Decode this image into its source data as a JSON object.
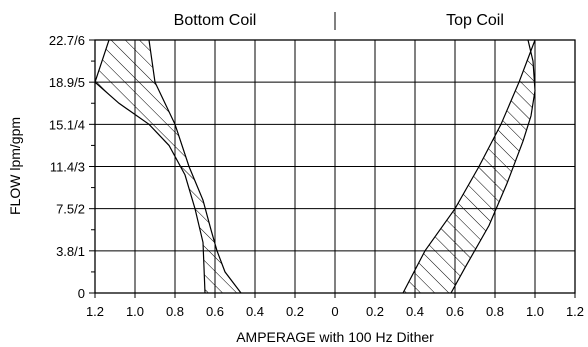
{
  "chart_data": {
    "type": "area",
    "panel_titles": [
      "Bottom Coil",
      "Top Coil"
    ],
    "xlabel": "AMPERAGE with 100 Hz Dither",
    "ylabel": "FLOW lpm/gpm",
    "x_tick_labels": [
      "1.2",
      "1.0",
      "0.8",
      "0.6",
      "0.4",
      "0.2",
      "0",
      "0.2",
      "0.4",
      "0.6",
      "0.8",
      "1.0",
      "1.2"
    ],
    "y_tick_labels": [
      "0",
      "3.8/1",
      "7.5/2",
      "11.4/3",
      "15.1/4",
      "18.9/5",
      "22.7/6"
    ],
    "y_tick_values_gpm": [
      0,
      1,
      2,
      3,
      4,
      5,
      6
    ],
    "xlim": [
      -1.2,
      1.2
    ],
    "ylim_gpm": [
      0,
      6
    ],
    "grid": true,
    "fill_pattern": "diagonal-hatch",
    "series": [
      {
        "panel": "Bottom Coil",
        "edge_a": {
          "x_amps": [
            1.13,
            1.2,
            1.08,
            0.93,
            0.83,
            0.75,
            0.7,
            0.66,
            0.65
          ],
          "y_gpm": [
            6.0,
            5.0,
            4.5,
            4.0,
            3.5,
            2.8,
            2.0,
            1.2,
            0.0
          ]
        },
        "edge_b": {
          "x_amps": [
            0.93,
            0.9,
            0.85,
            0.8,
            0.73,
            0.66,
            0.62,
            0.59,
            0.55,
            0.47
          ],
          "y_gpm": [
            6.0,
            5.0,
            4.5,
            4.0,
            3.0,
            2.2,
            1.5,
            1.0,
            0.5,
            0.0
          ]
        }
      },
      {
        "panel": "Top Coil",
        "edge_a": {
          "x_amps": [
            0.34,
            0.45,
            0.6,
            0.72,
            0.83,
            0.92,
            0.96,
            1.0,
            1.05,
            1.1
          ],
          "y_gpm": [
            0.0,
            1.0,
            2.0,
            3.0,
            4.0,
            5.0,
            5.5,
            6.0,
            6.3,
            6.6
          ]
        },
        "edge_b": {
          "x_amps": [
            0.58,
            0.65,
            0.77,
            0.86,
            0.94,
            0.98,
            1.0,
            0.99,
            0.95
          ],
          "y_gpm": [
            0.0,
            0.6,
            1.6,
            2.6,
            3.6,
            4.2,
            4.8,
            5.5,
            6.3
          ]
        }
      }
    ]
  }
}
